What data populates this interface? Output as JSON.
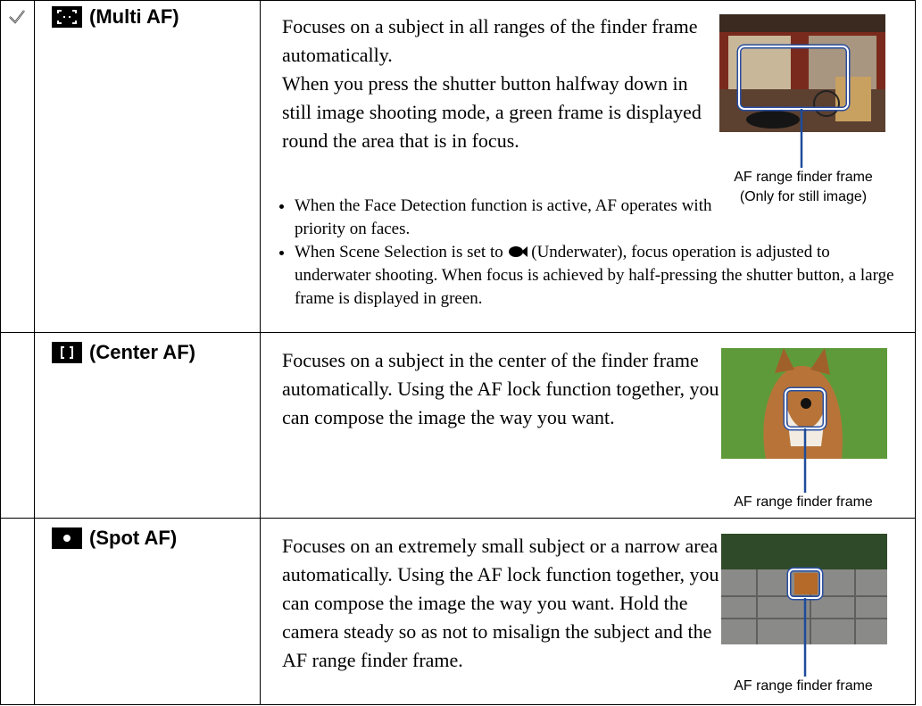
{
  "rows": [
    {
      "name": "(Multi AF)",
      "paragraphs": [
        "Focuses on a subject in all ranges of the finder frame automatically.",
        "When you press the shutter button halfway down in still image shooting mode, a green frame is displayed round the area that is in focus."
      ],
      "bullets": [
        {
          "text": "When the Face Detection function is active, AF operates with priority on faces."
        },
        {
          "before": "When Scene Selection is set to",
          "after": "(Underwater), focus operation is adjusted to underwater shooting. When focus is achieved by half-pressing the shutter button, a large frame is displayed in green."
        }
      ],
      "caption": [
        "AF range finder frame",
        "(Only for still image)"
      ]
    },
    {
      "name": "(Center AF)",
      "paragraphs": [
        "Focuses on a subject in the center of the finder frame automatically. Using the AF lock function together, you can compose the image the way you want."
      ],
      "caption": [
        "AF range finder frame"
      ]
    },
    {
      "name": "(Spot AF)",
      "paragraphs": [
        "Focuses on an extremely small subject or a narrow area automatically. Using the AF lock function together, you can compose the image the way you want. Hold the camera steady so as not to misalign the subject and the AF range finder frame."
      ],
      "caption": [
        "AF range finder frame"
      ]
    }
  ]
}
